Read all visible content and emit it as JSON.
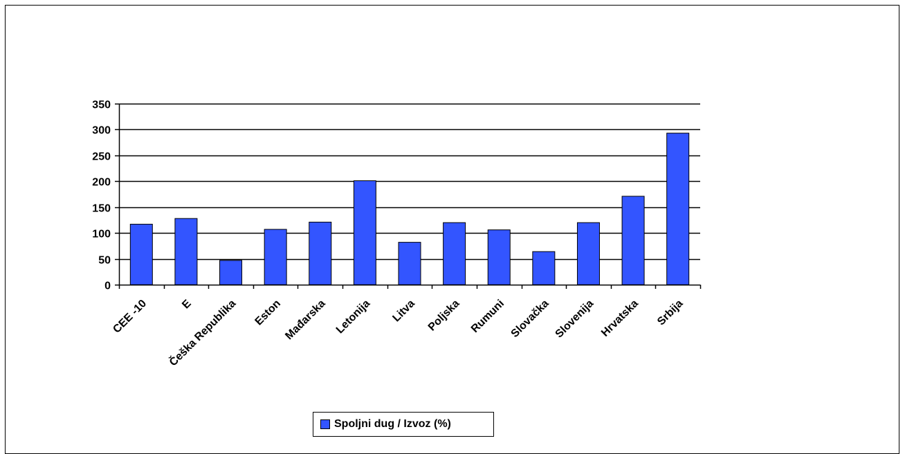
{
  "chart_data": {
    "type": "bar",
    "categories": [
      "CEE -10",
      "E",
      "Češka Republika",
      "Eston",
      "Mađarska",
      "Letonija",
      "Litva",
      "Poljska",
      "Rumuni",
      "Slovačka",
      "Slovenija",
      "Hrvatska",
      "Srbija"
    ],
    "series": [
      {
        "name": "Spoljni dug / Izvoz (%)",
        "values": [
          117,
          128,
          47,
          107,
          121,
          201,
          82,
          120,
          106,
          64,
          120,
          171,
          293
        ],
        "color": "#3355ff"
      }
    ],
    "ylim": [
      0,
      350
    ],
    "yticks": [
      0,
      50,
      100,
      150,
      200,
      250,
      300,
      350
    ],
    "grid": true,
    "legend": "bottom-center",
    "title": "",
    "xlabel": "",
    "ylabel": ""
  }
}
